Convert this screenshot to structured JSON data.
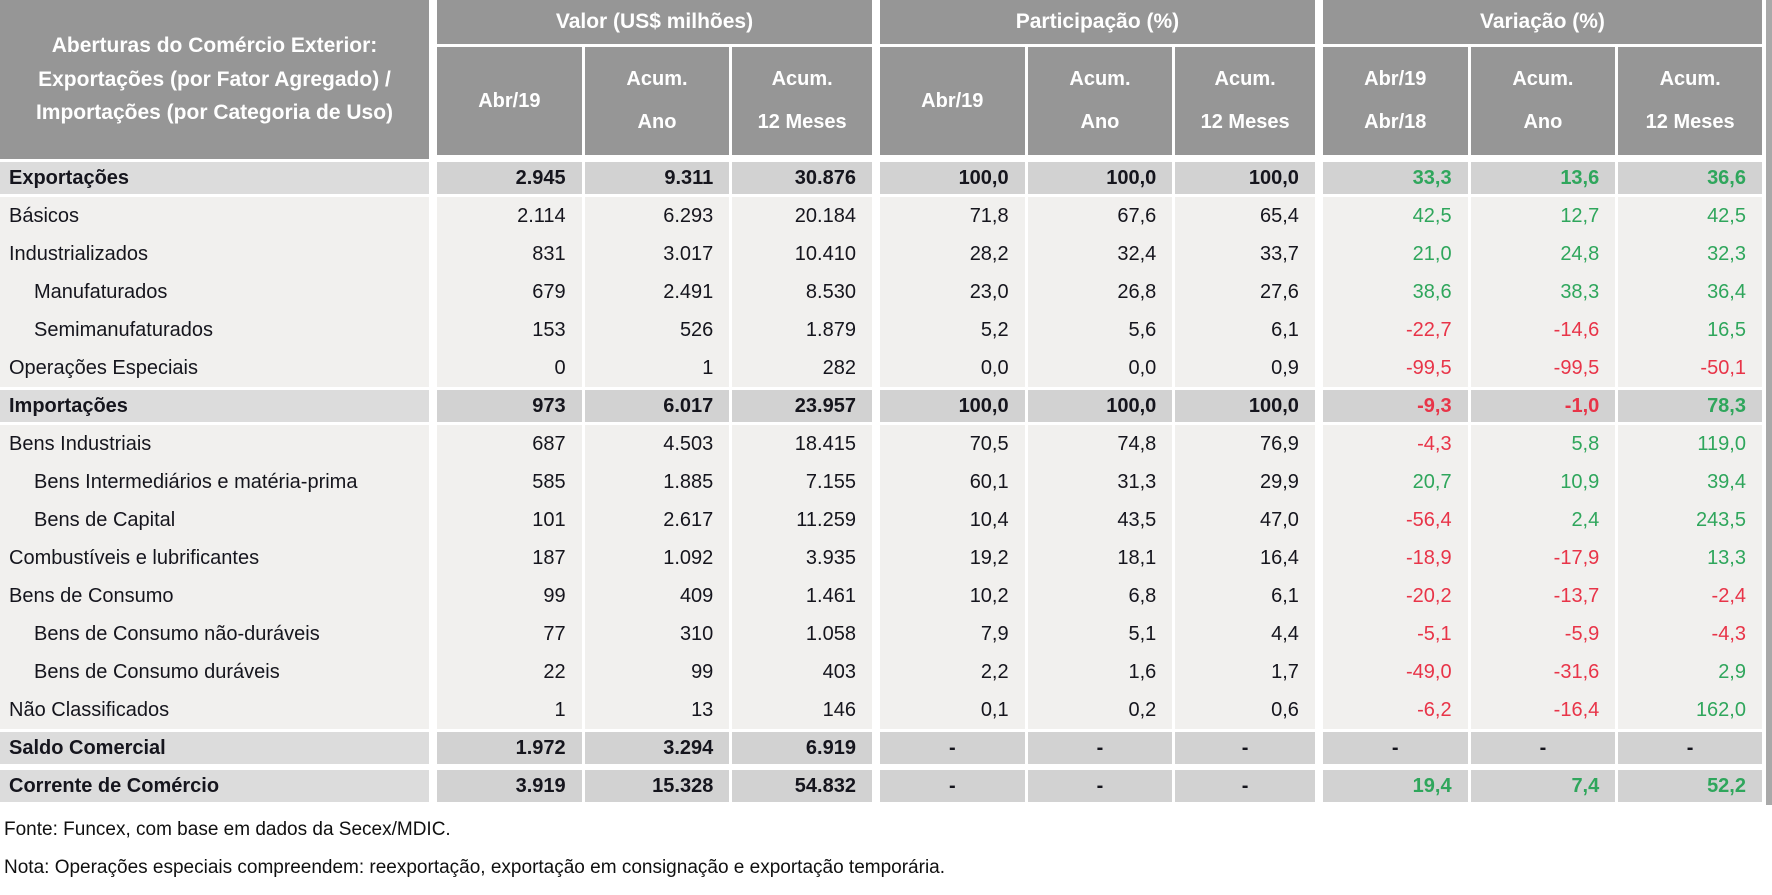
{
  "chart_data": {
    "type": "table",
    "title_lines": [
      "Aberturas do Comércio Exterior:",
      "Exportações (por Fator Agregado) /",
      "Importações (por Categoria de Uso)"
    ],
    "header": {
      "groups": [
        {
          "label": "Valor (US$ milhões)",
          "columns": [
            [
              "Abr/19"
            ],
            [
              "Acum.",
              "Ano"
            ],
            [
              "Acum.",
              "12 Meses"
            ]
          ]
        },
        {
          "label": "Participação (%)",
          "columns": [
            [
              "Abr/19"
            ],
            [
              "Acum.",
              "Ano"
            ],
            [
              "Acum.",
              "12 Meses"
            ]
          ]
        },
        {
          "label": "Variação (%)",
          "columns": [
            [
              "Abr/19",
              "Abr/18"
            ],
            [
              "Acum.",
              "Ano"
            ],
            [
              "Acum.",
              "12 Meses"
            ]
          ]
        }
      ]
    },
    "rows": [
      {
        "label": "Exportações",
        "band": true,
        "indent": false,
        "values": [
          "2.945",
          "9.311",
          "30.876",
          "100,0",
          "100,0",
          "100,0",
          "33,3",
          "13,6",
          "36,6"
        ],
        "trend": [
          null,
          null,
          null,
          null,
          null,
          null,
          "up",
          "up",
          "up"
        ]
      },
      {
        "label": "Básicos",
        "band": false,
        "indent": false,
        "values": [
          "2.114",
          "6.293",
          "20.184",
          "71,8",
          "67,6",
          "65,4",
          "42,5",
          "12,7",
          "42,5"
        ],
        "trend": [
          null,
          null,
          null,
          null,
          null,
          null,
          "up",
          "up",
          "up"
        ]
      },
      {
        "label": "Industrializados",
        "band": false,
        "indent": false,
        "values": [
          "831",
          "3.017",
          "10.410",
          "28,2",
          "32,4",
          "33,7",
          "21,0",
          "24,8",
          "32,3"
        ],
        "trend": [
          null,
          null,
          null,
          null,
          null,
          null,
          "up",
          "up",
          "up"
        ]
      },
      {
        "label": "Manufaturados",
        "band": false,
        "indent": true,
        "values": [
          "679",
          "2.491",
          "8.530",
          "23,0",
          "26,8",
          "27,6",
          "38,6",
          "38,3",
          "36,4"
        ],
        "trend": [
          null,
          null,
          null,
          null,
          null,
          null,
          "up",
          "up",
          "up"
        ]
      },
      {
        "label": "Semimanufaturados",
        "band": false,
        "indent": true,
        "values": [
          "153",
          "526",
          "1.879",
          "5,2",
          "5,6",
          "6,1",
          "-22,7",
          "-14,6",
          "16,5"
        ],
        "trend": [
          null,
          null,
          null,
          null,
          null,
          null,
          "down",
          "down",
          "up"
        ]
      },
      {
        "label": "Operações Especiais",
        "band": false,
        "indent": false,
        "values": [
          "0",
          "1",
          "282",
          "0,0",
          "0,0",
          "0,9",
          "-99,5",
          "-99,5",
          "-50,1"
        ],
        "trend": [
          null,
          null,
          null,
          null,
          null,
          null,
          "down",
          "down",
          "down"
        ]
      },
      {
        "label": "Importações",
        "band": true,
        "indent": false,
        "values": [
          "973",
          "6.017",
          "23.957",
          "100,0",
          "100,0",
          "100,0",
          "-9,3",
          "-1,0",
          "78,3"
        ],
        "trend": [
          null,
          null,
          null,
          null,
          null,
          null,
          "down",
          "down",
          "up"
        ]
      },
      {
        "label": "Bens Industriais",
        "band": false,
        "indent": false,
        "values": [
          "687",
          "4.503",
          "18.415",
          "70,5",
          "74,8",
          "76,9",
          "-4,3",
          "5,8",
          "119,0"
        ],
        "trend": [
          null,
          null,
          null,
          null,
          null,
          null,
          "down",
          "up",
          "up"
        ]
      },
      {
        "label": "Bens Intermediários e matéria-prima",
        "band": false,
        "indent": true,
        "values": [
          "585",
          "1.885",
          "7.155",
          "60,1",
          "31,3",
          "29,9",
          "20,7",
          "10,9",
          "39,4"
        ],
        "trend": [
          null,
          null,
          null,
          null,
          null,
          null,
          "up",
          "up",
          "up"
        ]
      },
      {
        "label": "Bens de Capital",
        "band": false,
        "indent": true,
        "values": [
          "101",
          "2.617",
          "11.259",
          "10,4",
          "43,5",
          "47,0",
          "-56,4",
          "2,4",
          "243,5"
        ],
        "trend": [
          null,
          null,
          null,
          null,
          null,
          null,
          "down",
          "up",
          "up"
        ]
      },
      {
        "label": "Combustíveis e lubrificantes",
        "band": false,
        "indent": false,
        "values": [
          "187",
          "1.092",
          "3.935",
          "19,2",
          "18,1",
          "16,4",
          "-18,9",
          "-17,9",
          "13,3"
        ],
        "trend": [
          null,
          null,
          null,
          null,
          null,
          null,
          "down",
          "down",
          "up"
        ]
      },
      {
        "label": "Bens de Consumo",
        "band": false,
        "indent": false,
        "values": [
          "99",
          "409",
          "1.461",
          "10,2",
          "6,8",
          "6,1",
          "-20,2",
          "-13,7",
          "-2,4"
        ],
        "trend": [
          null,
          null,
          null,
          null,
          null,
          null,
          "down",
          "down",
          "down"
        ]
      },
      {
        "label": "Bens de Consumo não-duráveis",
        "band": false,
        "indent": true,
        "values": [
          "77",
          "310",
          "1.058",
          "7,9",
          "5,1",
          "4,4",
          "-5,1",
          "-5,9",
          "-4,3"
        ],
        "trend": [
          null,
          null,
          null,
          null,
          null,
          null,
          "down",
          "down",
          "down"
        ]
      },
      {
        "label": "Bens de Consumo duráveis",
        "band": false,
        "indent": true,
        "values": [
          "22",
          "99",
          "403",
          "2,2",
          "1,6",
          "1,7",
          "-49,0",
          "-31,6",
          "2,9"
        ],
        "trend": [
          null,
          null,
          null,
          null,
          null,
          null,
          "down",
          "down",
          "up"
        ]
      },
      {
        "label": "Não Classificados",
        "band": false,
        "indent": false,
        "values": [
          "1",
          "13",
          "146",
          "0,1",
          "0,2",
          "0,6",
          "-6,2",
          "-16,4",
          "162,0"
        ],
        "trend": [
          null,
          null,
          null,
          null,
          null,
          null,
          "down",
          "down",
          "up"
        ]
      },
      {
        "label": "Saldo Comercial",
        "band": true,
        "indent": false,
        "values": [
          "1.972",
          "3.294",
          "6.919",
          "-",
          "-",
          "-",
          "-",
          "-",
          "-"
        ],
        "trend": [
          null,
          null,
          null,
          null,
          null,
          null,
          null,
          null,
          null
        ]
      },
      {
        "label": "Corrente de Comércio",
        "band": true,
        "indent": false,
        "values": [
          "3.919",
          "15.328",
          "54.832",
          "-",
          "-",
          "-",
          "19,4",
          "7,4",
          "52,2"
        ],
        "trend": [
          null,
          null,
          null,
          null,
          null,
          null,
          "up",
          "up",
          "up"
        ]
      }
    ],
    "footnotes": [
      "Fonte: Funcex, com base em dados da Secex/MDIC.",
      "Nota: Operações especiais compreendem: reexportação, exportação em consignação e exportação temporária."
    ],
    "colors": {
      "positive": "#2fa65c",
      "negative": "#e83448",
      "header_bg": "#969696",
      "band_label_bg": "#dcdcdc",
      "band_cell_bg": "#d2d2d2",
      "row_bg": "#f1f0ee"
    }
  }
}
